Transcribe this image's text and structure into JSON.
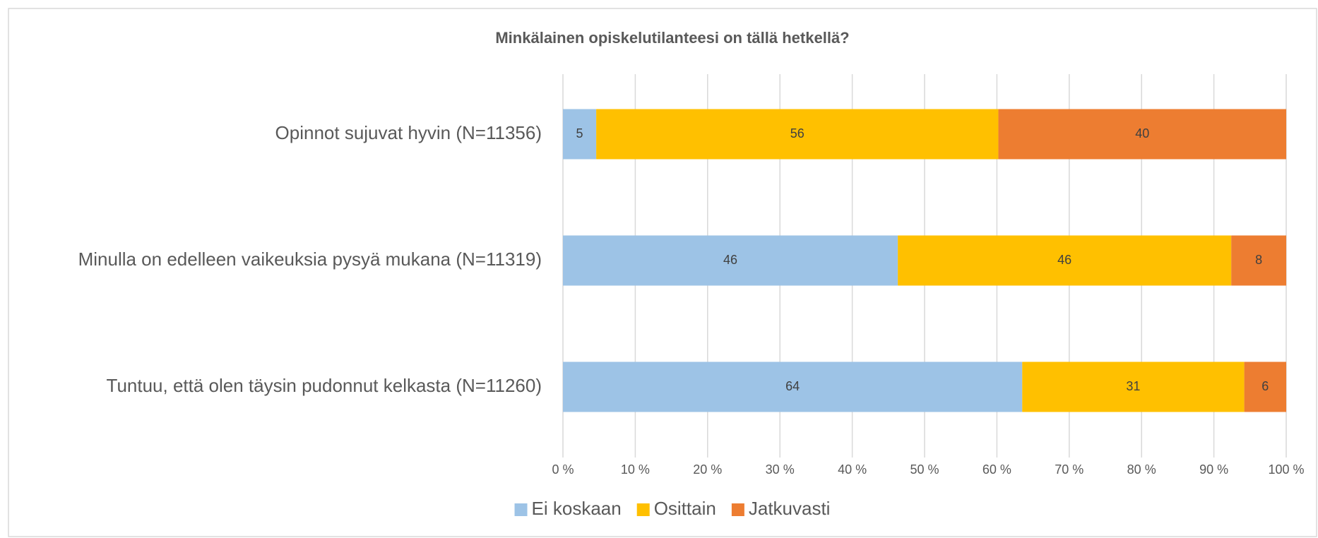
{
  "chart_data": {
    "type": "stacked-bar-horizontal",
    "title": "Minkälainen opiskelutilanteesi on tällä hetkellä?",
    "categories": [
      "Opinnot sujuvat hyvin (N=11356)",
      "Minulla on edelleen vaikeuksia pysyä mukana (N=11319)",
      "Tuntuu, että olen täysin pudonnut kelkasta (N=11260)"
    ],
    "series": [
      {
        "name": "Ei koskaan",
        "color": "#9dc3e6",
        "values": [
          4.6,
          46.3,
          63.5
        ],
        "value_labels": [
          "5",
          "46",
          "64"
        ]
      },
      {
        "name": "Osittain",
        "color": "#ffc000",
        "values": [
          55.6,
          46.1,
          30.7
        ],
        "value_labels": [
          "56",
          "46",
          "31"
        ]
      },
      {
        "name": "Jatkuvasti",
        "color": "#ed7d31",
        "values": [
          39.8,
          7.6,
          5.8
        ],
        "value_labels": [
          "40",
          "8",
          "6"
        ]
      }
    ],
    "xlim": [
      0,
      100
    ],
    "xticks": [
      {
        "value": 0,
        "label": "0 %"
      },
      {
        "value": 10,
        "label": "10 %"
      },
      {
        "value": 20,
        "label": "20 %"
      },
      {
        "value": 30,
        "label": "30 %"
      },
      {
        "value": 40,
        "label": "40 %"
      },
      {
        "value": 50,
        "label": "50 %"
      },
      {
        "value": 60,
        "label": "60 %"
      },
      {
        "value": 70,
        "label": "70 %"
      },
      {
        "value": 80,
        "label": "80 %"
      },
      {
        "value": 90,
        "label": "90 %"
      },
      {
        "value": 100,
        "label": "100 %"
      }
    ],
    "grid": true,
    "legend": "bottom"
  }
}
